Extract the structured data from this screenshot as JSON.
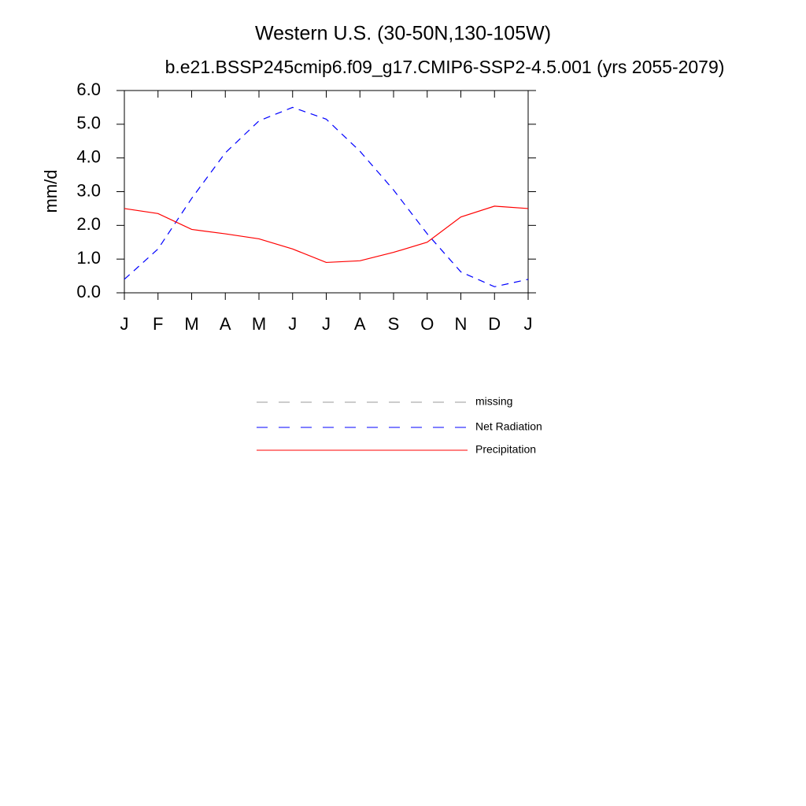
{
  "chart_data": {
    "type": "line",
    "title": "Western U.S. (30-50N,130-105W)",
    "subtitle": "b.e21.BSSP245cmip6.f09_g17.CMIP6-SSP2-4.5.001 (yrs 2055-2079)",
    "y_label": "mm/d",
    "categories": [
      "J",
      "F",
      "M",
      "A",
      "M",
      "J",
      "J",
      "A",
      "S",
      "O",
      "N",
      "D",
      "J"
    ],
    "series": [
      {
        "name": "missing",
        "color": "#999999",
        "dash": true,
        "values": [
          null,
          null,
          null,
          null,
          null,
          null,
          null,
          null,
          null,
          null,
          null,
          null,
          null
        ]
      },
      {
        "name": "Net Radiation",
        "color": "#0000ff",
        "dash": true,
        "values": [
          0.4,
          1.3,
          2.8,
          4.15,
          5.1,
          5.5,
          5.15,
          4.2,
          3.05,
          1.75,
          0.62,
          0.18,
          0.4
        ]
      },
      {
        "name": "Precipitation",
        "color": "#ff0000",
        "dash": false,
        "values": [
          2.5,
          2.35,
          1.88,
          1.75,
          1.6,
          1.3,
          0.9,
          0.95,
          1.2,
          1.5,
          2.25,
          2.57,
          2.5
        ]
      }
    ],
    "ylim": [
      0,
      6
    ],
    "yticks": [
      {
        "value": 0,
        "label": "0.0"
      },
      {
        "value": 1,
        "label": "1.0"
      },
      {
        "value": 2,
        "label": "2.0"
      },
      {
        "value": 3,
        "label": "3.0"
      },
      {
        "value": 4,
        "label": "4.0"
      },
      {
        "value": 5,
        "label": "5.0"
      },
      {
        "value": 6,
        "label": "6.0"
      }
    ],
    "grid": false
  }
}
